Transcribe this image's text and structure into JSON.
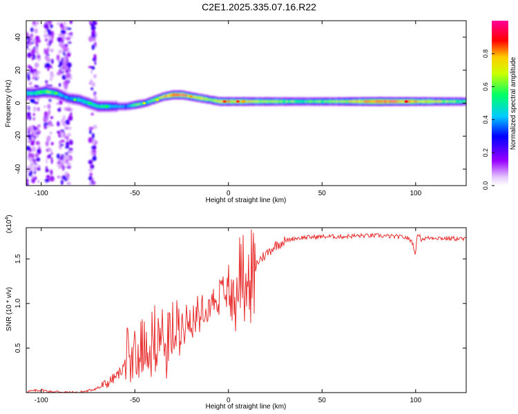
{
  "title": "C2E1.2025.335.07.16.R22",
  "chart_data": [
    {
      "type": "heatmap",
      "xlabel": "Height of straight line (km)",
      "ylabel": "Frequency (Hz)",
      "xlim": [
        -108,
        127
      ],
      "ylim": [
        -50,
        50
      ],
      "xticks": [
        -100,
        -50,
        0,
        50,
        100
      ],
      "xtick_labels": [
        "-100",
        "-50",
        "0",
        "50",
        "100"
      ],
      "yticks": [
        -40,
        -20,
        0,
        20,
        40
      ],
      "ytick_labels": [
        "-40",
        "-20",
        "0",
        "20",
        "40"
      ],
      "colorbar": {
        "label": "Normalized spectral amplitude",
        "range": [
          0,
          1
        ],
        "ticks": [
          0.0,
          0.2,
          0.4,
          0.6,
          0.8
        ],
        "tick_labels": [
          "0.0",
          "0.2",
          "0.4",
          "0.6",
          "0.8"
        ]
      },
      "ridge": {
        "x": [
          -104,
          -98,
          -92,
          -86,
          -80,
          -75,
          -70,
          -65,
          -60,
          -55,
          -50,
          -45,
          -40,
          -35,
          -30,
          -25,
          -20,
          -15,
          -10,
          -5,
          0,
          5,
          10,
          20,
          40,
          60,
          80,
          100,
          127
        ],
        "frequency": [
          6,
          7,
          6,
          3,
          2,
          0,
          -2,
          -2,
          -2,
          -2,
          -1,
          0,
          2,
          4,
          5,
          5,
          4,
          3,
          2,
          1,
          1,
          1,
          1,
          1,
          1,
          1,
          1,
          1,
          1
        ],
        "amplitude": [
          0.5,
          0.6,
          0.5,
          0.4,
          0.5,
          0.5,
          0.5,
          0.5,
          0.4,
          0.4,
          0.6,
          0.5,
          0.6,
          0.7,
          0.95,
          0.95,
          0.7,
          0.75,
          0.6,
          0.8,
          0.75,
          0.8,
          0.7,
          0.7,
          0.55,
          0.65,
          0.95,
          0.8,
          0.55
        ]
      },
      "noise_bands_x": [
        [
          -108,
          -101
        ],
        [
          -98,
          -94
        ],
        [
          -91,
          -84
        ],
        [
          -74,
          -71
        ]
      ]
    },
    {
      "type": "line",
      "xlabel": "Height of straight line (km)",
      "ylabel": "SNR (10 * v/v)",
      "y_multiplier": "(x10",
      "y_multiplier_exp": "4",
      "y_multiplier_close": ")",
      "xlim": [
        -108,
        127
      ],
      "ylim": [
        0,
        1.85
      ],
      "xticks": [
        -100,
        -50,
        0,
        50,
        100
      ],
      "xtick_labels": [
        "-100",
        "-50",
        "0",
        "50",
        "100"
      ],
      "yticks": [
        0.5,
        1.0,
        1.5
      ],
      "ytick_labels": [
        "0.5",
        "1.0",
        "1.5"
      ],
      "color": "#e83030",
      "series": [
        {
          "x": [
            -108,
            -100,
            -95,
            -90,
            -85,
            -80,
            -75,
            -70,
            -65,
            -60,
            -57,
            -55,
            -52,
            -50,
            -47,
            -45,
            -42,
            -40,
            -37,
            -35,
            -32,
            -30,
            -28,
            -25,
            -22,
            -20,
            -17,
            -15,
            -12,
            -10,
            -7,
            -5,
            -3,
            0,
            2,
            4,
            6,
            8,
            10,
            12,
            15,
            18,
            20,
            25,
            30,
            35,
            40,
            50,
            60,
            70,
            80,
            90,
            95,
            98,
            100,
            101,
            103,
            105,
            110,
            115,
            120,
            127
          ],
          "y": [
            0.01,
            0.03,
            0.01,
            0.01,
            0.0,
            0.0,
            0.02,
            0.05,
            0.1,
            0.18,
            0.25,
            0.35,
            0.45,
            0.55,
            0.5,
            0.62,
            0.55,
            0.66,
            0.6,
            0.68,
            0.62,
            0.7,
            0.7,
            0.78,
            0.82,
            0.85,
            0.9,
            0.93,
            0.98,
            1.0,
            1.05,
            1.1,
            1.15,
            1.2,
            1.25,
            1.3,
            1.35,
            1.35,
            1.3,
            1.38,
            1.45,
            1.52,
            1.55,
            1.65,
            1.7,
            1.73,
            1.74,
            1.75,
            1.75,
            1.76,
            1.76,
            1.75,
            1.74,
            1.7,
            1.55,
            1.8,
            1.72,
            1.73,
            1.74,
            1.73,
            1.73,
            1.72
          ]
        }
      ]
    }
  ],
  "colors": {
    "line": "#e83030",
    "frame": "#000000",
    "background": "#ffffff"
  }
}
